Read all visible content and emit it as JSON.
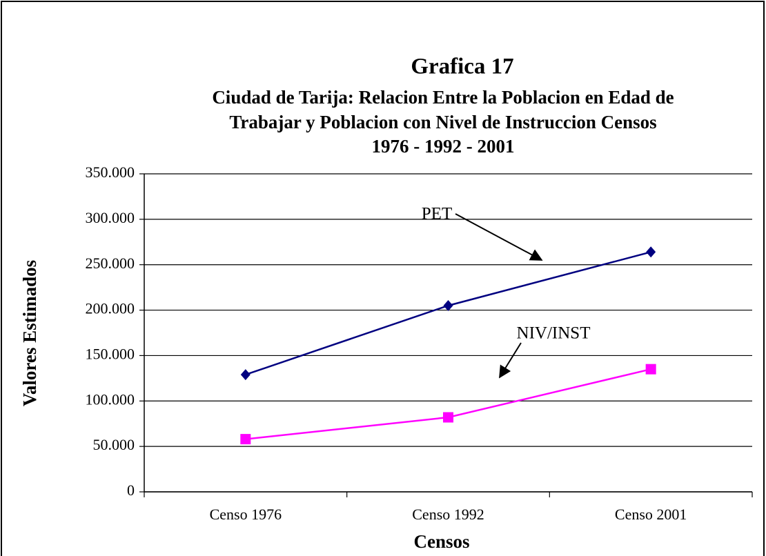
{
  "chart_data": {
    "type": "line",
    "title": "Grafica 17",
    "subtitle": [
      "Ciudad de Tarija: Relacion Entre la Poblacion en Edad de",
      "Trabajar  y Poblacion con Nivel de Instruccion Censos",
      "1976 - 1992 - 2001"
    ],
    "x_label": "Censos",
    "y_label": "Valores Estimados",
    "categories": [
      "Censo 1976",
      "Censo 1992",
      "Censo 2001"
    ],
    "series": [
      {
        "name": "PET",
        "color": "#000080",
        "marker": "diamond",
        "values": [
          129000,
          205000,
          264000
        ]
      },
      {
        "name": "NIV/INST",
        "color": "#ff00ff",
        "marker": "square",
        "values": [
          58000,
          82000,
          135000
        ]
      }
    ],
    "ylim": [
      0,
      350000
    ],
    "yticks": [
      0,
      {
        "value": 50000,
        "label": "50.000"
      },
      {
        "value": 100000,
        "label": "100.000"
      },
      {
        "value": 150000,
        "label": "150.000"
      },
      {
        "value": 200000,
        "label": "200.000"
      },
      {
        "value": 250000,
        "label": "250.000"
      },
      {
        "value": 300000,
        "label": "300.000"
      },
      {
        "value": 350000,
        "label": "350.000"
      }
    ],
    "grid": true,
    "annotations": [
      "PET",
      "NIV/INST"
    ]
  }
}
